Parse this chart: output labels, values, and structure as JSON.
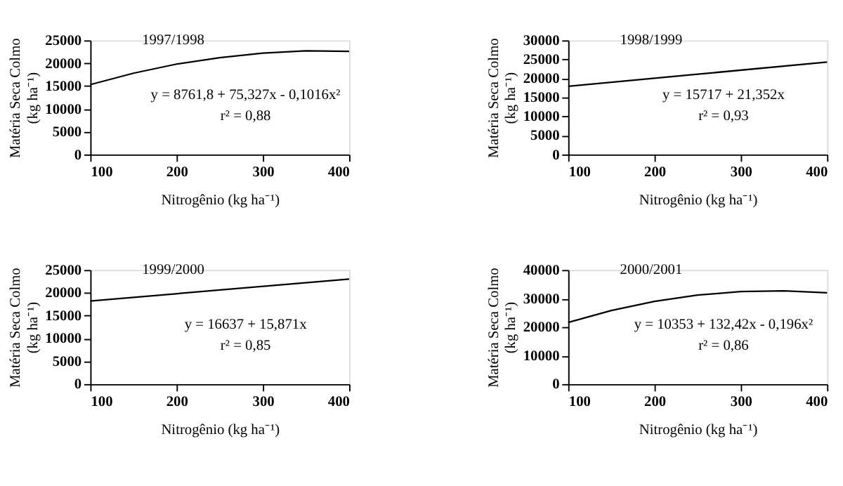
{
  "chart_data": [
    {
      "type": "line",
      "title": "1997/1998",
      "xlabel": "Nitrogênio (kg ha⁻¹)",
      "ylabel": "Matéria Seca Colmo\n(kg ha⁻¹)",
      "annotations": [
        "y = 8761,8 + 75,327x - 0,1016x²",
        "r² = 0,88"
      ],
      "x": [
        100,
        150,
        200,
        250,
        300,
        350,
        400
      ],
      "xlim": [
        100,
        400
      ],
      "xticks": [
        100,
        200,
        300,
        400
      ],
      "ylim": [
        0,
        25000
      ],
      "yticks": [
        0,
        5000,
        10000,
        15000,
        20000,
        25000
      ],
      "series": [
        {
          "color": "#000000",
          "values": [
            15300,
            17800,
            19800,
            21200,
            22200,
            22700,
            22600
          ]
        }
      ]
    },
    {
      "type": "line",
      "title": "1998/1999",
      "xlabel": "Nitrogênio (kg ha⁻¹)",
      "ylabel": "Matéria Seca Colmo\n(kg ha⁻¹)",
      "annotations": [
        "y = 15717 + 21,352x",
        "r² = 0,93"
      ],
      "x": [
        100,
        250,
        400
      ],
      "xlim": [
        100,
        400
      ],
      "xticks": [
        100,
        200,
        300,
        400
      ],
      "ylim": [
        0,
        30000
      ],
      "yticks": [
        0,
        5000,
        10000,
        15000,
        20000,
        25000,
        30000
      ],
      "series": [
        {
          "color": "#000000",
          "values": [
            17900,
            21100,
            24300
          ]
        }
      ]
    },
    {
      "type": "line",
      "title": "1999/2000",
      "xlabel": "Nitrogênio (kg ha⁻¹)",
      "ylabel": "Matéria Seca Colmo\n(kg ha⁻¹)",
      "annotations": [
        "y = 16637 + 15,871x",
        "r² = 0,85"
      ],
      "x": [
        100,
        250,
        400
      ],
      "xlim": [
        100,
        400
      ],
      "xticks": [
        100,
        200,
        300,
        400
      ],
      "ylim": [
        0,
        25000
      ],
      "yticks": [
        0,
        5000,
        10000,
        15000,
        20000,
        25000
      ],
      "series": [
        {
          "color": "#000000",
          "values": [
            18200,
            20600,
            23000
          ]
        }
      ]
    },
    {
      "type": "line",
      "title": "2000/2001",
      "xlabel": "Nitrogênio (kg ha⁻¹)",
      "ylabel": "Matéria Seca Colmo\n(kg ha⁻¹)",
      "annotations": [
        "y = 10353 + 132,42x - 0,196x²",
        "r² = 0,86"
      ],
      "x": [
        100,
        150,
        200,
        250,
        300,
        350,
        400
      ],
      "xlim": [
        100,
        400
      ],
      "xticks": [
        100,
        200,
        300,
        400
      ],
      "ylim": [
        0,
        40000
      ],
      "yticks": [
        0,
        10000,
        20000,
        30000,
        40000
      ],
      "series": [
        {
          "color": "#000000",
          "values": [
            21600,
            25800,
            29000,
            31200,
            32400,
            32700,
            32000
          ]
        }
      ]
    }
  ]
}
